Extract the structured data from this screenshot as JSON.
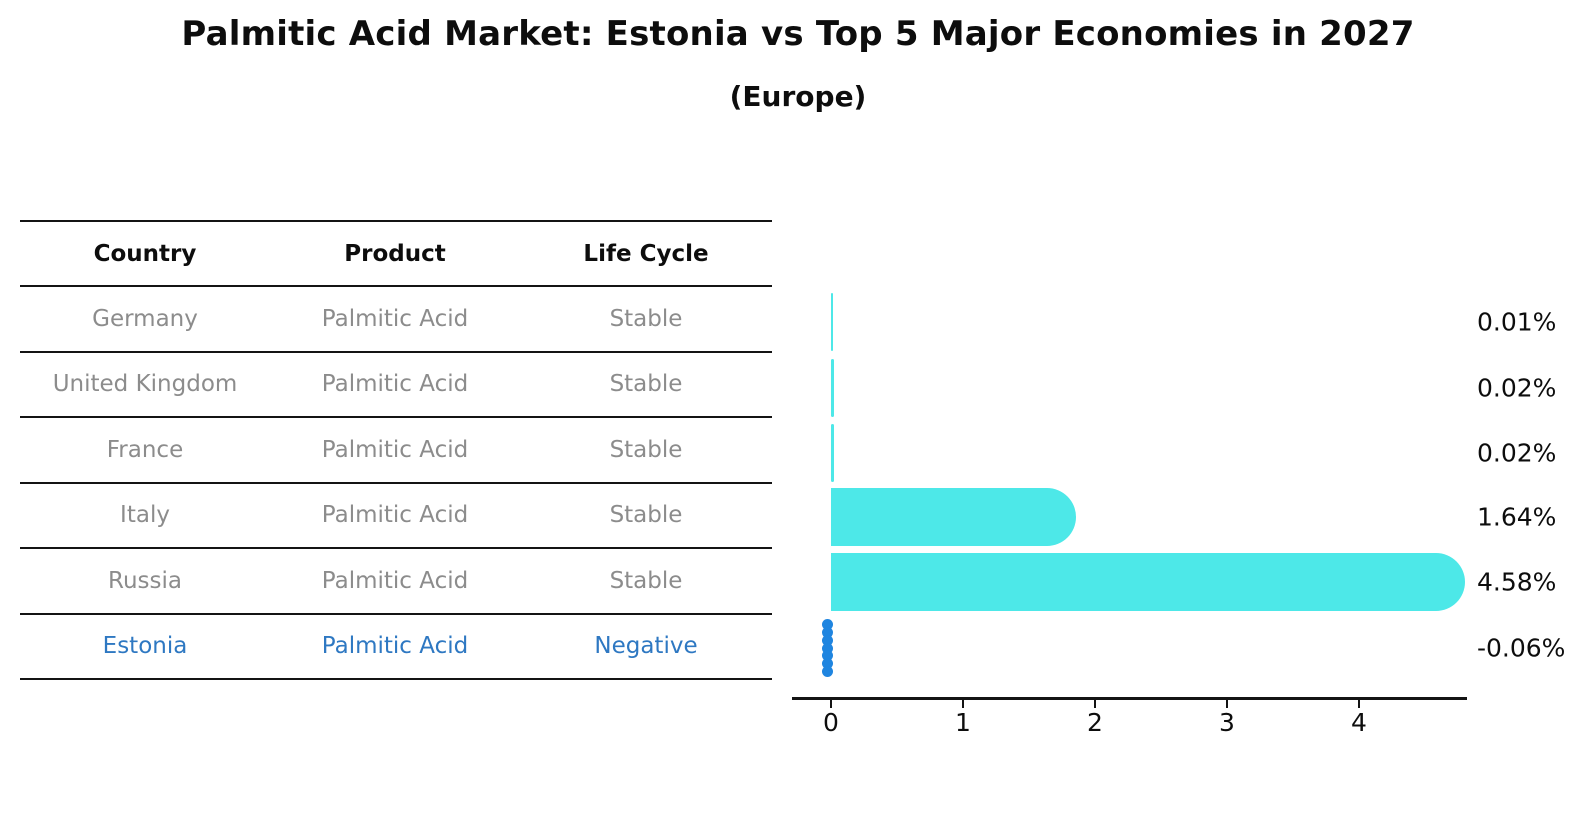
{
  "title": "Palmitic Acid Market: Estonia vs Top 5 Major Economies in 2027",
  "subtitle": "(Europe)",
  "table": {
    "headers": {
      "country": "Country",
      "product": "Product",
      "life_cycle": "Life Cycle"
    },
    "rows": [
      {
        "country": "Germany",
        "product": "Palmitic Acid",
        "life_cycle": "Stable",
        "highlight": false
      },
      {
        "country": "United Kingdom",
        "product": "Palmitic Acid",
        "life_cycle": "Stable",
        "highlight": false
      },
      {
        "country": "France",
        "product": "Palmitic Acid",
        "life_cycle": "Stable",
        "highlight": false
      },
      {
        "country": "Italy",
        "product": "Palmitic Acid",
        "life_cycle": "Stable",
        "highlight": false
      },
      {
        "country": "Russia",
        "product": "Palmitic Acid",
        "life_cycle": "Stable",
        "highlight": false
      },
      {
        "country": "Estonia",
        "product": "Palmitic Acid",
        "life_cycle": "Negative",
        "highlight": true
      }
    ]
  },
  "chart_data": {
    "type": "bar",
    "orientation": "horizontal",
    "categories": [
      "Germany",
      "United Kingdom",
      "France",
      "Italy",
      "Russia",
      "Estonia"
    ],
    "values": [
      0.01,
      0.02,
      0.02,
      1.64,
      4.58,
      -0.06
    ],
    "value_labels": [
      "0.01%",
      "0.02%",
      "0.02%",
      "1.64%",
      "4.58%",
      "-0.06%"
    ],
    "xticks": [
      "0",
      "1",
      "2",
      "3",
      "4"
    ],
    "xlim": [
      -0.29,
      4.83
    ],
    "grid": false,
    "legend": false,
    "bar_color": "#4de8e8",
    "highlight_bar_color": "#1f85e0",
    "highlight_text_color": "#2e78c2",
    "table_text_color": "#8c8c8c"
  }
}
